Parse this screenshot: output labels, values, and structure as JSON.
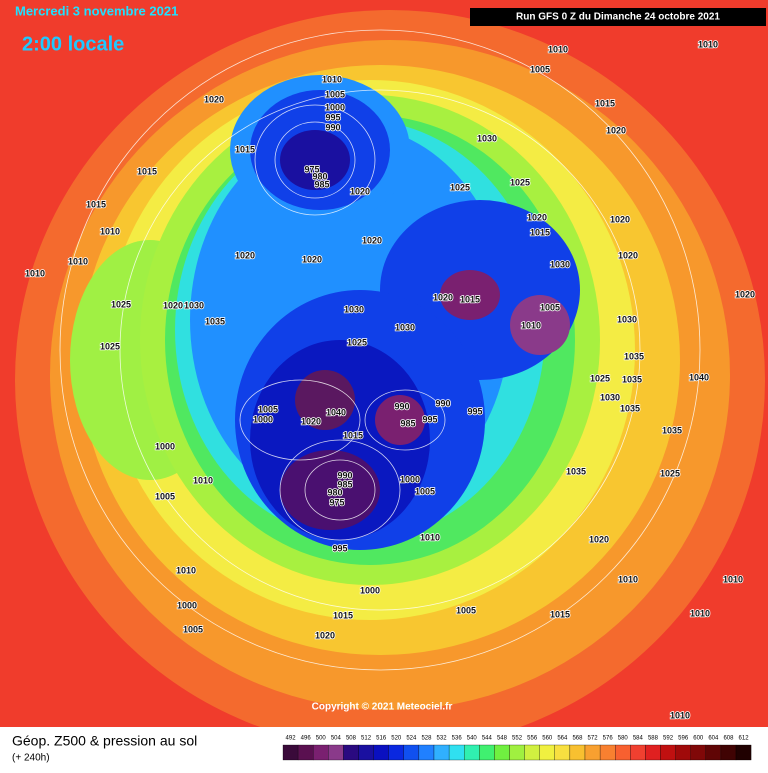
{
  "header": {
    "date": "Mercredi 3 novembre 2021",
    "local_time": "2:00 locale",
    "run": "Run GFS 0 Z du Dimanche 24 octobre 2021"
  },
  "copyright": "Copyright © 2021 Meteociel.fr",
  "footer": {
    "title": "Géop. Z500 & pression au sol",
    "lead": "(+ 240h)"
  },
  "colorbar": {
    "ticks": [
      492,
      496,
      500,
      504,
      508,
      512,
      516,
      520,
      524,
      528,
      532,
      536,
      540,
      544,
      548,
      552,
      556,
      560,
      564,
      568,
      572,
      576,
      580,
      584,
      588,
      592,
      596,
      600,
      604,
      608,
      612
    ],
    "colors": [
      "#3a0a3a",
      "#5a1050",
      "#7a2070",
      "#8a3a8a",
      "#2a0a80",
      "#1a10a0",
      "#0a10c0",
      "#0a28e0",
      "#1050f0",
      "#2080ff",
      "#30b0ff",
      "#30e0f0",
      "#30f0b0",
      "#40f070",
      "#70f040",
      "#a0f040",
      "#d0f040",
      "#f0f040",
      "#f8e040",
      "#f8c030",
      "#f8a030",
      "#f88030",
      "#f86030",
      "#f04030",
      "#e02020",
      "#c01010",
      "#a00a0a",
      "#800808",
      "#600505",
      "#400303",
      "#200101"
    ]
  },
  "isobar_labels": [
    1010,
    1005,
    1000,
    995,
    990,
    975,
    980,
    985,
    1020,
    1015,
    1015,
    1015,
    1010,
    1010,
    1010,
    1020,
    1020,
    1020,
    1020,
    1025,
    1025,
    1030,
    1020,
    1015,
    1030,
    1020,
    1020,
    1020,
    1015,
    1005,
    1010,
    1010,
    1020,
    1030,
    1035,
    1025,
    1035,
    1040,
    1030,
    1035,
    1035,
    1035,
    1025,
    1020,
    1010,
    1010,
    1010,
    1010,
    1005,
    1010,
    1015,
    1020,
    1030,
    1030,
    1025,
    1025,
    1020,
    1030,
    1035,
    1025,
    1005,
    1000,
    1040,
    1020,
    1015,
    990,
    985,
    990,
    995,
    995,
    990,
    985,
    980,
    975,
    1000,
    1005,
    1010,
    995,
    1000,
    1005,
    1010,
    1010,
    1000,
    1005,
    1015,
    1020,
    1000,
    1005,
    1015
  ]
}
